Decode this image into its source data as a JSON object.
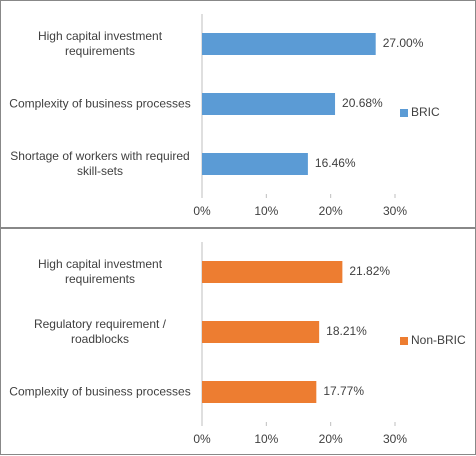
{
  "chart_data": [
    {
      "type": "bar",
      "orientation": "horizontal",
      "categories": [
        "High capital investment requirements",
        "Complexity of business processes",
        "Shortage of workers with required skill-sets"
      ],
      "series": [
        {
          "name": "BRIC",
          "color": "#5b9bd5",
          "values": [
            27,
            20.68,
            16.46
          ],
          "value_labels": [
            "27.00%",
            "20.68%",
            "16.46%"
          ]
        }
      ],
      "xlim": [
        0,
        30
      ],
      "xticks": [
        {
          "value": 0,
          "label": "0%"
        },
        {
          "value": 10,
          "label": "10%"
        },
        {
          "value": 20,
          "label": "20%"
        },
        {
          "value": 30,
          "label": "30%"
        }
      ],
      "legend": "right"
    },
    {
      "type": "bar",
      "orientation": "horizontal",
      "categories": [
        "High capital investment requirements",
        "Regulatory requirement / roadblocks",
        "Complexity of business processes"
      ],
      "series": [
        {
          "name": "Non-BRIC",
          "color": "#ed7d31",
          "values": [
            21.82,
            18.21,
            17.77
          ],
          "value_labels": [
            "21.82%",
            "18.21%",
            "17.77%"
          ]
        }
      ],
      "xlim": [
        0,
        30
      ],
      "xticks": [
        {
          "value": 0,
          "label": "0%"
        },
        {
          "value": 10,
          "label": "10%"
        },
        {
          "value": 20,
          "label": "20%"
        },
        {
          "value": 30,
          "label": "30%"
        }
      ],
      "legend": "right"
    }
  ]
}
